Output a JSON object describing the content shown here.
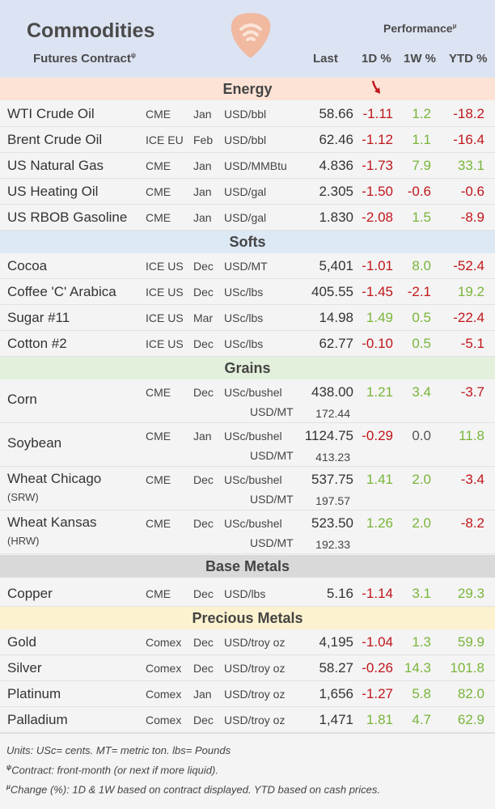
{
  "header": {
    "title": "Commodities",
    "subtitle": "Futures Contract",
    "subtitle_sup": "ψ",
    "performance": "Performance",
    "performance_sup": "μ",
    "col_last": "Last",
    "col_1d": "1D %",
    "col_1w": "1W %",
    "col_ytd": "YTD %",
    "logo_icon": "guitar-pick-wifi-logo"
  },
  "colors": {
    "negative": "#c0161b",
    "positive": "#79b53a",
    "arrow": "#c0161b"
  },
  "sections": {
    "energy": {
      "label": "Energy",
      "bg": "#fde3d6"
    },
    "softs": {
      "label": "Softs",
      "bg": "#dde8f5"
    },
    "grains": {
      "label": "Grains",
      "bg": "#e3f0dc"
    },
    "base": {
      "label": "Base Metals",
      "bg": "#d9d9d9"
    },
    "precious": {
      "label": "Precious Metals",
      "bg": "#fdf2cf"
    }
  },
  "energy_arrow": "down-arrow-icon",
  "rows": {
    "wti": {
      "name": "WTI Crude Oil",
      "exch": "CME",
      "mon": "Jan",
      "unit": "USD/bbl",
      "last": "58.66",
      "d1": "-1.11",
      "w1": "1.2",
      "ytd": "-18.2"
    },
    "brent": {
      "name": "Brent Crude Oil",
      "exch": "ICE EU",
      "mon": "Feb",
      "unit": "USD/bbl",
      "last": "62.46",
      "d1": "-1.12",
      "w1": "1.1",
      "ytd": "-16.4"
    },
    "natgas": {
      "name": "US Natural Gas",
      "exch": "CME",
      "mon": "Jan",
      "unit": "USD/MMBtu",
      "last": "4.836",
      "d1": "-1.73",
      "w1": "7.9",
      "ytd": "33.1"
    },
    "heating": {
      "name": "US Heating Oil",
      "exch": "CME",
      "mon": "Jan",
      "unit": "USD/gal",
      "last": "2.305",
      "d1": "-1.50",
      "w1": "-0.6",
      "ytd": "-0.6"
    },
    "rbob": {
      "name": "US RBOB Gasoline",
      "exch": "CME",
      "mon": "Jan",
      "unit": "USD/gal",
      "last": "1.830",
      "d1": "-2.08",
      "w1": "1.5",
      "ytd": "-8.9"
    },
    "cocoa": {
      "name": "Cocoa",
      "exch": "ICE US",
      "mon": "Dec",
      "unit": "USD/MT",
      "last": "5,401",
      "d1": "-1.01",
      "w1": "8.0",
      "ytd": "-52.4"
    },
    "coffee": {
      "name": "Coffee 'C' Arabica",
      "exch": "ICE US",
      "mon": "Dec",
      "unit": "USc/lbs",
      "last": "405.55",
      "d1": "-1.45",
      "w1": "-2.1",
      "ytd": "19.2"
    },
    "sugar": {
      "name": "Sugar #11",
      "exch": "ICE US",
      "mon": "Mar",
      "unit": "USc/lbs",
      "last": "14.98",
      "d1": "1.49",
      "w1": "0.5",
      "ytd": "-22.4"
    },
    "cotton": {
      "name": "Cotton #2",
      "exch": "ICE US",
      "mon": "Dec",
      "unit": "USc/lbs",
      "last": "62.77",
      "d1": "-0.10",
      "w1": "0.5",
      "ytd": "-5.1"
    },
    "corn": {
      "name": "Corn",
      "name2": "",
      "exch": "CME",
      "mon": "Dec",
      "unit": "USc/bushel",
      "last": "438.00",
      "unit2": "USD/MT",
      "last2": "172.44",
      "d1": "1.21",
      "w1": "3.4",
      "ytd": "-3.7"
    },
    "soybean": {
      "name": "Soybean",
      "name2": "",
      "exch": "CME",
      "mon": "Jan",
      "unit": "USc/bushel",
      "last": "1124.75",
      "unit2": "USD/MT",
      "last2": "413.23",
      "d1": "-0.29",
      "w1": "0.0",
      "ytd": "11.8"
    },
    "wheatchi": {
      "name": "Wheat Chicago",
      "name2": "(SRW)",
      "exch": "CME",
      "mon": "Dec",
      "unit": "USc/bushel",
      "last": "537.75",
      "unit2": "USD/MT",
      "last2": "197.57",
      "d1": "1.41",
      "w1": "2.0",
      "ytd": "-3.4"
    },
    "wheatkan": {
      "name": "Wheat Kansas",
      "name2": "(HRW)",
      "exch": "CME",
      "mon": "Dec",
      "unit": "USc/bushel",
      "last": "523.50",
      "unit2": "USD/MT",
      "last2": "192.33",
      "d1": "1.26",
      "w1": "2.0",
      "ytd": "-8.2"
    },
    "copper": {
      "name": "Copper",
      "exch": "CME",
      "mon": "Dec",
      "unit": "USD/lbs",
      "last": "5.16",
      "d1": "-1.14",
      "w1": "3.1",
      "ytd": "29.3"
    },
    "gold": {
      "name": "Gold",
      "exch": "Comex",
      "mon": "Dec",
      "unit": "USD/troy oz",
      "last": "4,195",
      "d1": "-1.04",
      "w1": "1.3",
      "ytd": "59.9"
    },
    "silver": {
      "name": "Silver",
      "exch": "Comex",
      "mon": "Dec",
      "unit": "USD/troy oz",
      "last": "58.27",
      "d1": "-0.26",
      "w1": "14.3",
      "ytd": "101.8"
    },
    "platinum": {
      "name": "Platinum",
      "exch": "Comex",
      "mon": "Jan",
      "unit": "USD/troy oz",
      "last": "1,656",
      "d1": "-1.27",
      "w1": "5.8",
      "ytd": "82.0"
    },
    "palladium": {
      "name": "Palladium",
      "exch": "Comex",
      "mon": "Dec",
      "unit": "USD/troy oz",
      "last": "1,471",
      "d1": "1.81",
      "w1": "4.7",
      "ytd": "62.9"
    }
  },
  "footer": {
    "units": "Units: USc= cents.  MT= metric ton.  lbs= Pounds",
    "contract_sup": "ψ",
    "contract": "Contract: front-month (or next if more liquid).",
    "change_sup": "μ",
    "change": "Change (%): 1D & 1W based on contract displayed. YTD based on cash prices."
  }
}
